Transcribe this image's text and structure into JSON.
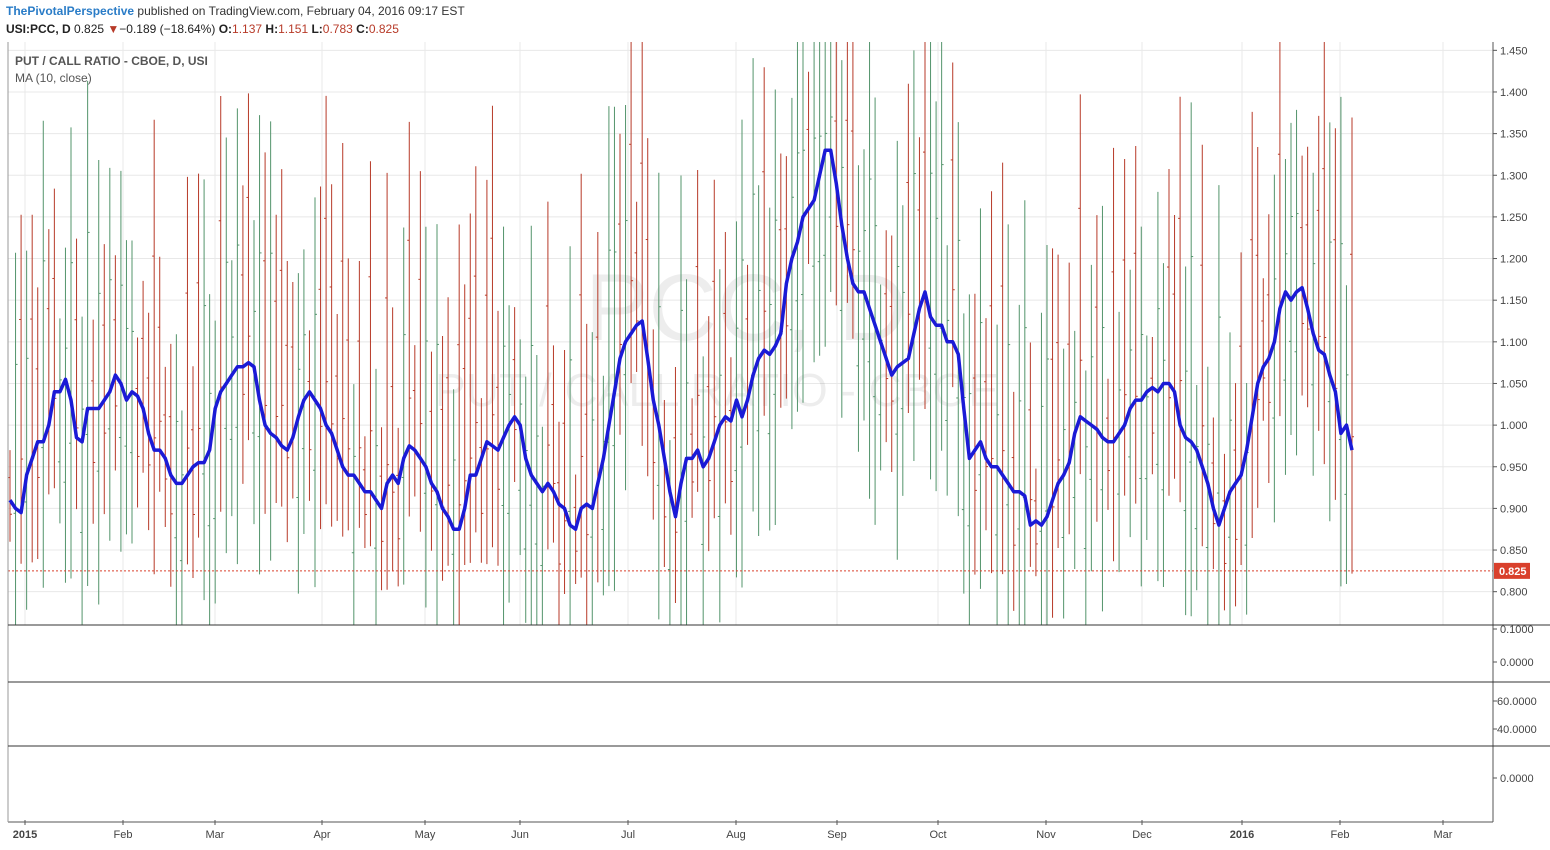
{
  "header": {
    "author": "ThePivotalPerspective",
    "published": "published on TradingView.com, February 04, 2016 09:17 EST",
    "symbol": "USI:PCC, D",
    "last": "0.825",
    "arrow": "▼",
    "change": "−0.189 (−18.64%)",
    "o_label": "O:",
    "o_val": "1.137",
    "h_label": "H:",
    "h_val": "1.151",
    "l_label": "L:",
    "l_val": "0.783",
    "c_label": "C:",
    "c_val": "0.825"
  },
  "legend": {
    "title": "PUT / CALL RATIO - CBOE, D, USI",
    "ma": "MA (10, close)"
  },
  "watermark": {
    "symbol": "PCC, D",
    "name": "PUT / CALL RATIO - CBOE"
  },
  "colors": {
    "up": "#53946b",
    "down": "#b73a28",
    "ma": "#1a1ad6",
    "price_tag": "#d9402c",
    "grid": "#e8e8e8",
    "separator": "#333333"
  },
  "chart_data": {
    "type": "line",
    "title": "PUT / CALL RATIO - CBOE, D, USI",
    "series_label": "MA (10, close)",
    "ylim": [
      0.76,
      1.46
    ],
    "y_ticks": [
      "1.450",
      "1.400",
      "1.350",
      "1.300",
      "1.250",
      "1.200",
      "1.150",
      "1.100",
      "1.050",
      "1.000",
      "0.950",
      "0.900",
      "0.850",
      "0.800"
    ],
    "last_price": 0.825,
    "last_price_label": "0.825",
    "x_ticks": [
      "2015",
      "Feb",
      "Mar",
      "Apr",
      "May",
      "Jun",
      "Jul",
      "Aug",
      "Sep",
      "Oct",
      "Nov",
      "Dec",
      "2016",
      "Feb",
      "Mar"
    ],
    "ma_series": [
      0.91,
      0.9,
      0.895,
      0.94,
      0.96,
      0.98,
      0.98,
      1.0,
      1.04,
      1.04,
      1.055,
      1.03,
      0.985,
      0.98,
      1.02,
      1.02,
      1.02,
      1.03,
      1.04,
      1.06,
      1.05,
      1.03,
      1.04,
      1.035,
      1.02,
      0.99,
      0.97,
      0.97,
      0.96,
      0.94,
      0.93,
      0.93,
      0.94,
      0.95,
      0.955,
      0.955,
      0.97,
      1.02,
      1.04,
      1.05,
      1.06,
      1.07,
      1.07,
      1.075,
      1.07,
      1.03,
      1.0,
      0.99,
      0.985,
      0.975,
      0.97,
      0.985,
      1.01,
      1.03,
      1.04,
      1.03,
      1.02,
      1.0,
      0.99,
      0.97,
      0.95,
      0.94,
      0.94,
      0.93,
      0.92,
      0.92,
      0.91,
      0.9,
      0.93,
      0.94,
      0.93,
      0.96,
      0.975,
      0.97,
      0.96,
      0.95,
      0.93,
      0.92,
      0.9,
      0.89,
      0.875,
      0.875,
      0.9,
      0.94,
      0.94,
      0.96,
      0.98,
      0.975,
      0.97,
      0.985,
      1.0,
      1.01,
      1.0,
      0.96,
      0.94,
      0.93,
      0.92,
      0.93,
      0.92,
      0.905,
      0.9,
      0.88,
      0.875,
      0.9,
      0.905,
      0.9,
      0.93,
      0.96,
      1.0,
      1.04,
      1.08,
      1.1,
      1.11,
      1.12,
      1.125,
      1.08,
      1.03,
      1.0,
      0.96,
      0.92,
      0.89,
      0.93,
      0.96,
      0.96,
      0.97,
      0.95,
      0.96,
      0.98,
      1.0,
      1.01,
      1.005,
      1.03,
      1.01,
      1.03,
      1.06,
      1.08,
      1.09,
      1.085,
      1.095,
      1.11,
      1.17,
      1.2,
      1.22,
      1.25,
      1.26,
      1.27,
      1.3,
      1.33,
      1.33,
      1.29,
      1.24,
      1.2,
      1.17,
      1.16,
      1.16,
      1.14,
      1.12,
      1.1,
      1.08,
      1.06,
      1.07,
      1.075,
      1.08,
      1.11,
      1.14,
      1.16,
      1.13,
      1.12,
      1.12,
      1.1,
      1.1,
      1.085,
      1.02,
      0.96,
      0.97,
      0.98,
      0.96,
      0.95,
      0.95,
      0.94,
      0.93,
      0.92,
      0.92,
      0.915,
      0.88,
      0.885,
      0.88,
      0.89,
      0.91,
      0.93,
      0.94,
      0.955,
      0.99,
      1.01,
      1.005,
      1.0,
      0.995,
      0.985,
      0.98,
      0.98,
      0.99,
      1.0,
      1.02,
      1.03,
      1.03,
      1.04,
      1.045,
      1.04,
      1.05,
      1.05,
      1.04,
      1.0,
      0.985,
      0.98,
      0.97,
      0.95,
      0.93,
      0.9,
      0.88,
      0.9,
      0.92,
      0.93,
      0.94,
      0.97,
      1.01,
      1.05,
      1.07,
      1.08,
      1.1,
      1.14,
      1.16,
      1.15,
      1.16,
      1.165,
      1.14,
      1.11,
      1.09,
      1.085,
      1.06,
      1.04,
      0.99,
      1.0,
      0.97
    ]
  }
}
